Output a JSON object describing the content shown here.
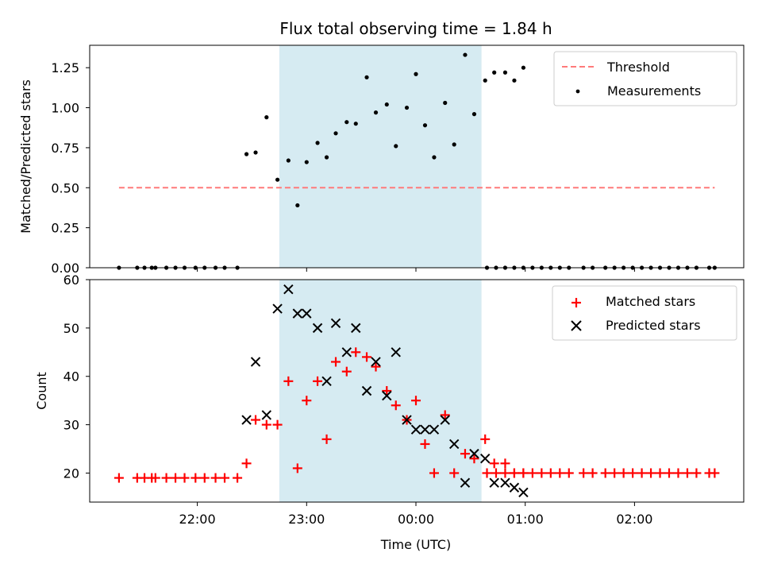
{
  "chart_data": [
    {
      "type": "scatter",
      "title": "Flux total observing time = 1.84 h",
      "xlabel": "",
      "ylabel": "Matched/Predicted stars",
      "ylim": [
        0,
        1.39
      ],
      "yticks": [
        "0.00",
        "0.25",
        "0.50",
        "0.75",
        "1.00",
        "1.25"
      ],
      "observing_window": [
        "22:45",
        "00:36"
      ],
      "threshold": {
        "value": 0.5,
        "x_range": [
          "21:17",
          "02:44"
        ],
        "color": "#ff7a7a"
      },
      "legend": [
        "Threshold",
        "Measurements"
      ],
      "legend_position": "top-right",
      "series": [
        {
          "name": "Measurements",
          "color": "#000000",
          "points": [
            [
              "21:17",
              0
            ],
            [
              "21:27",
              0
            ],
            [
              "21:31",
              0
            ],
            [
              "21:35",
              0
            ],
            [
              "21:37",
              0
            ],
            [
              "21:43",
              0
            ],
            [
              "21:48",
              0
            ],
            [
              "21:53",
              0
            ],
            [
              "21:59",
              0
            ],
            [
              "22:04",
              0
            ],
            [
              "22:10",
              0
            ],
            [
              "22:15",
              0
            ],
            [
              "22:22",
              0
            ],
            [
              "22:27",
              0.71
            ],
            [
              "22:32",
              0.72
            ],
            [
              "22:38",
              0.94
            ],
            [
              "22:44",
              0.55
            ],
            [
              "22:50",
              0.67
            ],
            [
              "22:55",
              0.39
            ],
            [
              "23:00",
              0.66
            ],
            [
              "23:06",
              0.78
            ],
            [
              "23:11",
              0.69
            ],
            [
              "23:16",
              0.84
            ],
            [
              "23:22",
              0.91
            ],
            [
              "23:27",
              0.9
            ],
            [
              "23:33",
              1.19
            ],
            [
              "23:38",
              0.97
            ],
            [
              "23:44",
              1.02
            ],
            [
              "23:49",
              0.76
            ],
            [
              "23:55",
              1.0
            ],
            [
              "00:00",
              1.21
            ],
            [
              "00:05",
              0.89
            ],
            [
              "00:10",
              0.69
            ],
            [
              "00:16",
              1.03
            ],
            [
              "00:21",
              0.77
            ],
            [
              "00:27",
              1.33
            ],
            [
              "00:32",
              0.96
            ],
            [
              "00:38",
              1.17
            ],
            [
              "00:43",
              1.22
            ],
            [
              "00:49",
              1.22
            ],
            [
              "00:54",
              1.17
            ],
            [
              "00:59",
              1.25
            ],
            [
              "00:39",
              0
            ],
            [
              "00:44",
              0
            ],
            [
              "00:49",
              0
            ],
            [
              "00:54",
              0
            ],
            [
              "00:59",
              0
            ],
            [
              "01:04",
              0
            ],
            [
              "01:09",
              0
            ],
            [
              "01:14",
              0
            ],
            [
              "01:19",
              0
            ],
            [
              "01:24",
              0
            ],
            [
              "01:32",
              0
            ],
            [
              "01:37",
              0
            ],
            [
              "01:44",
              0
            ],
            [
              "01:49",
              0
            ],
            [
              "01:54",
              0
            ],
            [
              "01:59",
              0
            ],
            [
              "02:04",
              0
            ],
            [
              "02:09",
              0
            ],
            [
              "02:14",
              0
            ],
            [
              "02:19",
              0
            ],
            [
              "02:24",
              0
            ],
            [
              "02:29",
              0
            ],
            [
              "02:34",
              0
            ],
            [
              "02:41",
              0
            ],
            [
              "02:44",
              0
            ]
          ]
        }
      ]
    },
    {
      "type": "scatter",
      "title": "",
      "xlabel": "Time (UTC)",
      "ylabel": "Count",
      "ylim": [
        14,
        60
      ],
      "yticks": [
        "20",
        "30",
        "40",
        "50",
        "60"
      ],
      "xticks": [
        "22:00",
        "23:00",
        "00:00",
        "01:00",
        "02:00"
      ],
      "observing_window": [
        "22:45",
        "00:36"
      ],
      "legend": [
        "Matched stars",
        "Predicted stars"
      ],
      "legend_position": "top-right",
      "series": [
        {
          "name": "Matched stars",
          "color": "#ff0000",
          "marker": "+",
          "points": [
            [
              "21:17",
              19
            ],
            [
              "21:27",
              19
            ],
            [
              "21:31",
              19
            ],
            [
              "21:35",
              19
            ],
            [
              "21:37",
              19
            ],
            [
              "21:43",
              19
            ],
            [
              "21:48",
              19
            ],
            [
              "21:53",
              19
            ],
            [
              "21:59",
              19
            ],
            [
              "22:04",
              19
            ],
            [
              "22:10",
              19
            ],
            [
              "22:15",
              19
            ],
            [
              "22:22",
              19
            ],
            [
              "22:27",
              22
            ],
            [
              "22:32",
              31
            ],
            [
              "22:38",
              30
            ],
            [
              "22:44",
              30
            ],
            [
              "22:50",
              39
            ],
            [
              "22:55",
              21
            ],
            [
              "23:00",
              35
            ],
            [
              "23:06",
              39
            ],
            [
              "23:11",
              27
            ],
            [
              "23:16",
              43
            ],
            [
              "23:22",
              41
            ],
            [
              "23:27",
              45
            ],
            [
              "23:33",
              44
            ],
            [
              "23:38",
              42
            ],
            [
              "23:44",
              37
            ],
            [
              "23:49",
              34
            ],
            [
              "23:55",
              31
            ],
            [
              "00:00",
              35
            ],
            [
              "00:05",
              26
            ],
            [
              "00:10",
              20
            ],
            [
              "00:16",
              32
            ],
            [
              "00:21",
              20
            ],
            [
              "00:27",
              24
            ],
            [
              "00:32",
              23
            ],
            [
              "00:38",
              27
            ],
            [
              "00:43",
              22
            ],
            [
              "00:49",
              22
            ],
            [
              "00:54",
              20
            ],
            [
              "00:59",
              20
            ],
            [
              "00:39",
              20
            ],
            [
              "00:44",
              20
            ],
            [
              "00:49",
              20
            ],
            [
              "00:54",
              20
            ],
            [
              "00:59",
              20
            ],
            [
              "01:04",
              20
            ],
            [
              "01:09",
              20
            ],
            [
              "01:14",
              20
            ],
            [
              "01:19",
              20
            ],
            [
              "01:24",
              20
            ],
            [
              "01:32",
              20
            ],
            [
              "01:37",
              20
            ],
            [
              "01:44",
              20
            ],
            [
              "01:49",
              20
            ],
            [
              "01:54",
              20
            ],
            [
              "01:59",
              20
            ],
            [
              "02:04",
              20
            ],
            [
              "02:09",
              20
            ],
            [
              "02:14",
              20
            ],
            [
              "02:19",
              20
            ],
            [
              "02:24",
              20
            ],
            [
              "02:29",
              20
            ],
            [
              "02:34",
              20
            ],
            [
              "02:41",
              20
            ],
            [
              "02:44",
              20
            ]
          ]
        },
        {
          "name": "Predicted stars",
          "color": "#000000",
          "marker": "x",
          "points": [
            [
              "22:27",
              31
            ],
            [
              "22:32",
              43
            ],
            [
              "22:38",
              32
            ],
            [
              "22:44",
              54
            ],
            [
              "22:50",
              58
            ],
            [
              "22:55",
              53
            ],
            [
              "23:00",
              53
            ],
            [
              "23:06",
              50
            ],
            [
              "23:11",
              39
            ],
            [
              "23:16",
              51
            ],
            [
              "23:22",
              45
            ],
            [
              "23:27",
              50
            ],
            [
              "23:33",
              37
            ],
            [
              "23:38",
              43
            ],
            [
              "23:44",
              36
            ],
            [
              "23:49",
              45
            ],
            [
              "23:55",
              31
            ],
            [
              "00:00",
              29
            ],
            [
              "00:05",
              29
            ],
            [
              "00:10",
              29
            ],
            [
              "00:16",
              31
            ],
            [
              "00:21",
              26
            ],
            [
              "00:27",
              18
            ],
            [
              "00:32",
              24
            ],
            [
              "00:38",
              23
            ],
            [
              "00:43",
              18
            ],
            [
              "00:49",
              18
            ],
            [
              "00:54",
              17
            ],
            [
              "00:59",
              16
            ]
          ]
        }
      ]
    }
  ]
}
